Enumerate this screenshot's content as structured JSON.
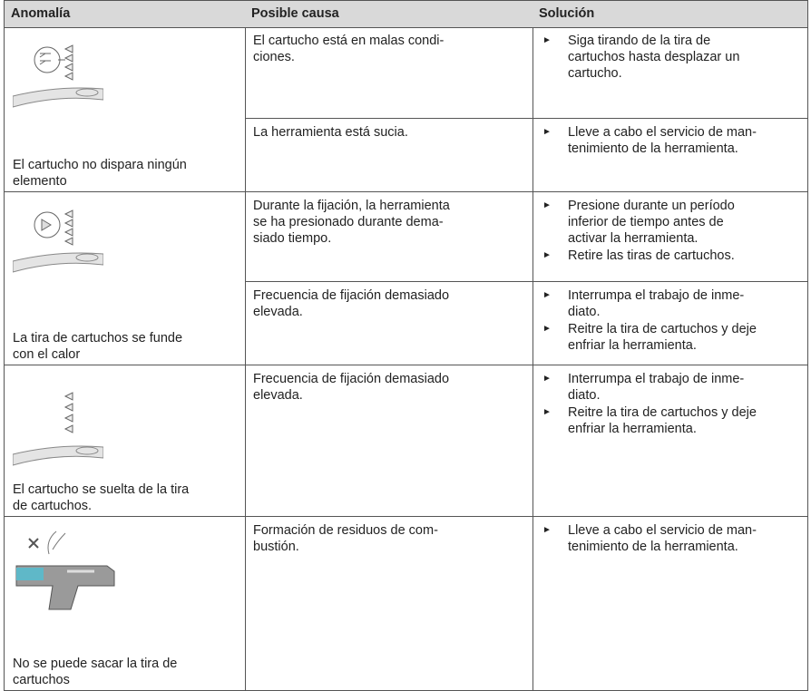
{
  "table": {
    "header": [
      "Anomalía",
      "Posible causa",
      "Solución"
    ],
    "rows": [
      {
        "anomaly": [
          "El cartucho no dispara ningún",
          "elemento"
        ],
        "causes": [
          {
            "cause": [
              "El cartucho está en malas condi-",
              "ciones."
            ],
            "solutions": [
              [
                "Siga tirando de la tira de",
                "cartuchos hasta desplazar un",
                "cartucho."
              ]
            ]
          },
          {
            "cause": [
              "La herramienta está sucia."
            ],
            "solutions": [
              [
                "Lleve a cabo el servicio de man-",
                "tenimiento de la herramienta."
              ]
            ]
          }
        ]
      },
      {
        "anomaly": [
          "La tira de cartuchos se funde",
          "con el calor"
        ],
        "causes": [
          {
            "cause": [
              "Durante la fijación, la herramienta",
              "se ha presionado durante dema-",
              "siado tiempo."
            ],
            "solutions": [
              [
                "Presione durante un período",
                "inferior de tiempo antes de",
                "activar la herramienta."
              ],
              [
                "Retire las tiras de cartuchos."
              ]
            ]
          },
          {
            "cause": [
              "Frecuencia de fijación demasiado",
              "elevada."
            ],
            "solutions": [
              [
                "Interrumpa el trabajo de inme-",
                "diato."
              ],
              [
                "Reitre la tira de cartuchos y deje",
                "enfriar la herramienta."
              ]
            ]
          }
        ]
      },
      {
        "anomaly": [
          "El cartucho se suelta de la tira",
          "de cartuchos."
        ],
        "causes": [
          {
            "cause": [
              "Frecuencia de fijación demasiado",
              "elevada."
            ],
            "solutions": [
              [
                "Interrumpa el trabajo de inme-",
                "diato."
              ],
              [
                "Reitre la tira de cartuchos y deje",
                "enfriar la herramienta."
              ]
            ]
          }
        ]
      },
      {
        "anomaly": [
          "No se puede sacar la tira de",
          "cartuchos"
        ],
        "causes": [
          {
            "cause": [
              "Formación de residuos de com-",
              "bustión."
            ],
            "solutions": [
              [
                "Lleve a cabo el servicio de man-",
                "tenimiento de la herramienta."
              ]
            ]
          }
        ]
      }
    ]
  }
}
